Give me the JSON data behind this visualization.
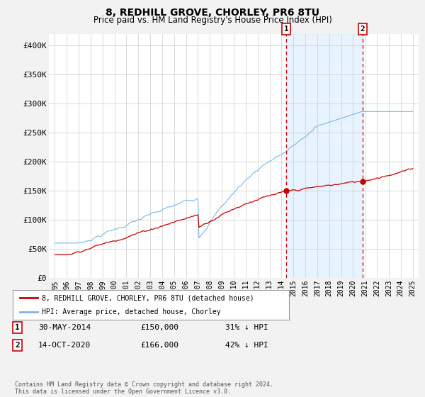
{
  "title": "8, REDHILL GROVE, CHORLEY, PR6 8TU",
  "subtitle": "Price paid vs. HM Land Registry's House Price Index (HPI)",
  "ylim": [
    0,
    420000
  ],
  "yticks": [
    0,
    50000,
    100000,
    150000,
    200000,
    250000,
    300000,
    350000,
    400000
  ],
  "ytick_labels": [
    "£0",
    "£50K",
    "£100K",
    "£150K",
    "£200K",
    "£250K",
    "£300K",
    "£350K",
    "£400K"
  ],
  "hpi_color": "#7ab8e8",
  "hpi_fill_color": "#ddeeff",
  "price_color": "#cc0000",
  "bg_color": "#f2f2f2",
  "plot_bg_color": "#ffffff",
  "grid_color": "#cccccc",
  "marker1_x": 2014.41,
  "marker1_y": 150000,
  "marker2_x": 2020.79,
  "marker2_y": 166000,
  "legend_line1": "8, REDHILL GROVE, CHORLEY, PR6 8TU (detached house)",
  "legend_line2": "HPI: Average price, detached house, Chorley",
  "table_row1": [
    "1",
    "30-MAY-2014",
    "£150,000",
    "31% ↓ HPI"
  ],
  "table_row2": [
    "2",
    "14-OCT-2020",
    "£166,000",
    "42% ↓ HPI"
  ],
  "footer": "Contains HM Land Registry data © Crown copyright and database right 2024.\nThis data is licensed under the Open Government Licence v3.0.",
  "vline1_x": 2014.41,
  "vline2_x": 2020.79,
  "xmin": 1994.5,
  "xmax": 2025.5
}
